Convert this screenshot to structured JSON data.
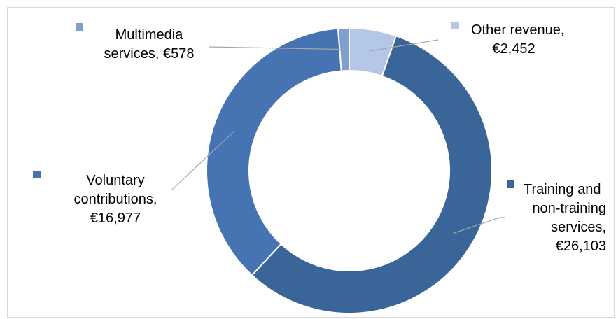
{
  "chart_data": {
    "type": "doughnut",
    "title": "",
    "legend": "none",
    "series": [
      {
        "values": [
          2452,
          26103,
          16977,
          578
        ],
        "categories": [
          "Other revenue",
          "Training and non-training services",
          "Voluntary contributions",
          "Multimedia services"
        ]
      }
    ],
    "slices": [
      {
        "category": "Other revenue",
        "value": 2452,
        "color": "#b4c7e7",
        "label_lines": [
          "Other revenue,",
          "€2,452"
        ]
      },
      {
        "category": "Training and non-training services",
        "value": 26103,
        "color": "#3a6599",
        "label_lines": [
          "Training and",
          "non-training",
          "services,",
          "€26,103"
        ]
      },
      {
        "category": "Voluntary contributions",
        "value": 16977,
        "color": "#4674b3",
        "label_lines": [
          "Voluntary",
          "contributions,",
          "€16,977"
        ]
      },
      {
        "category": "Multimedia services",
        "value": 578,
        "color": "#7f9fcf",
        "label_lines": [
          "Multimedia",
          "services,  €578"
        ]
      }
    ]
  }
}
